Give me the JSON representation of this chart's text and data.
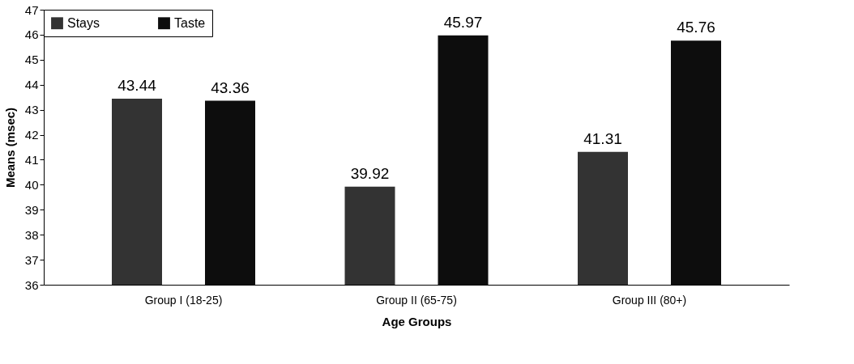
{
  "chart_data": {
    "type": "bar",
    "xlabel": "Age Groups",
    "ylabel": "Means (msec)",
    "categories": [
      "Group I (18-25)",
      "Group II (65-75)",
      "Group III (80+)"
    ],
    "series": [
      {
        "name": "Stays",
        "color": "#333333",
        "values": [
          43.44,
          39.92,
          41.31
        ]
      },
      {
        "name": "Taste",
        "color": "#0d0d0d",
        "values": [
          43.36,
          45.97,
          45.76
        ]
      }
    ],
    "ylim": [
      36,
      47
    ],
    "yticks": [
      36,
      37,
      38,
      39,
      40,
      41,
      42,
      43,
      44,
      45,
      46,
      47
    ],
    "data_labels": true,
    "grid": false,
    "legend": "top left"
  }
}
